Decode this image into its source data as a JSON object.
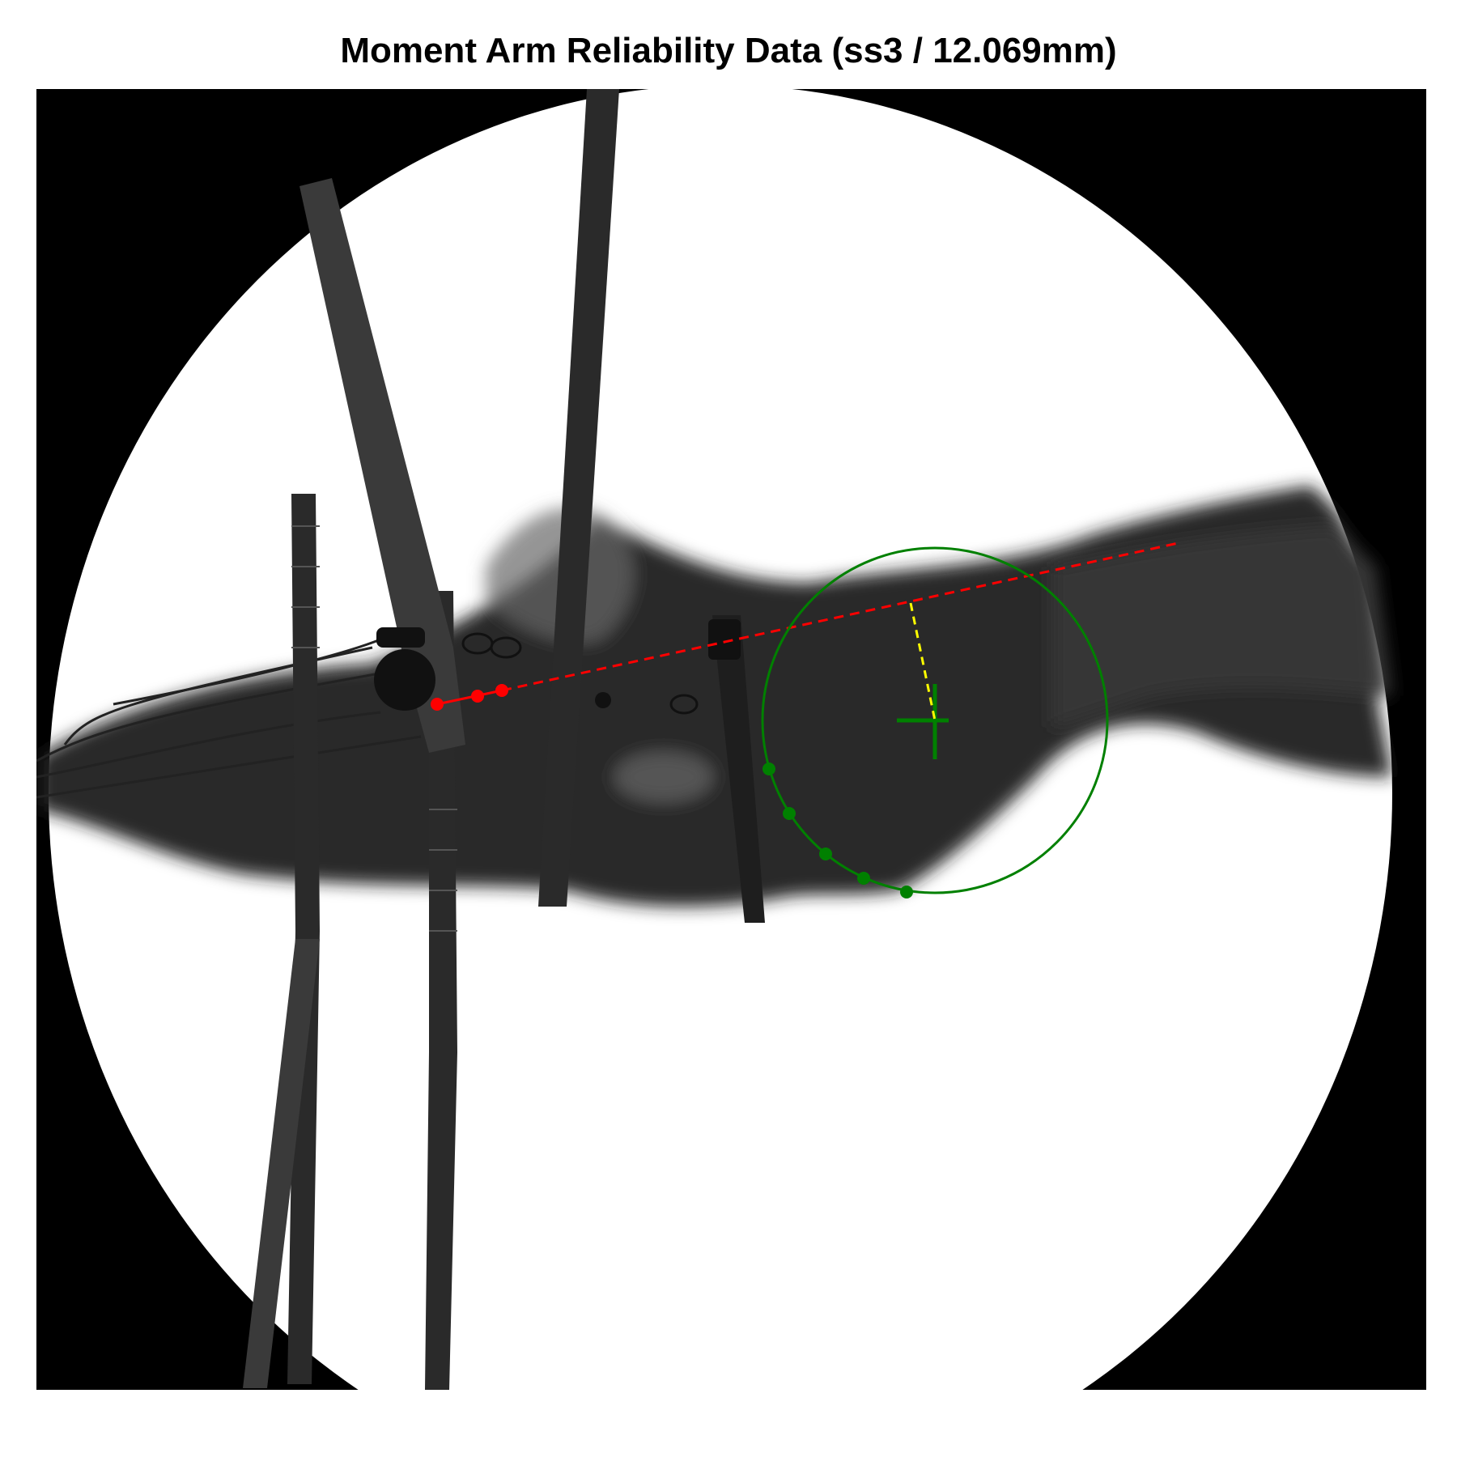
{
  "title": "Moment Arm Reliability Data (ss3 / 12.069mm)",
  "colors": {
    "tendon_line": "#ff0000",
    "joint_circle": "#008000",
    "moment_arm": "#ffff00",
    "background_field": "#000000",
    "exposure_field": "#ffffff"
  },
  "markers": {
    "tendon_points_count": 3,
    "arc_points_count": 5,
    "center_marker": "plus"
  }
}
